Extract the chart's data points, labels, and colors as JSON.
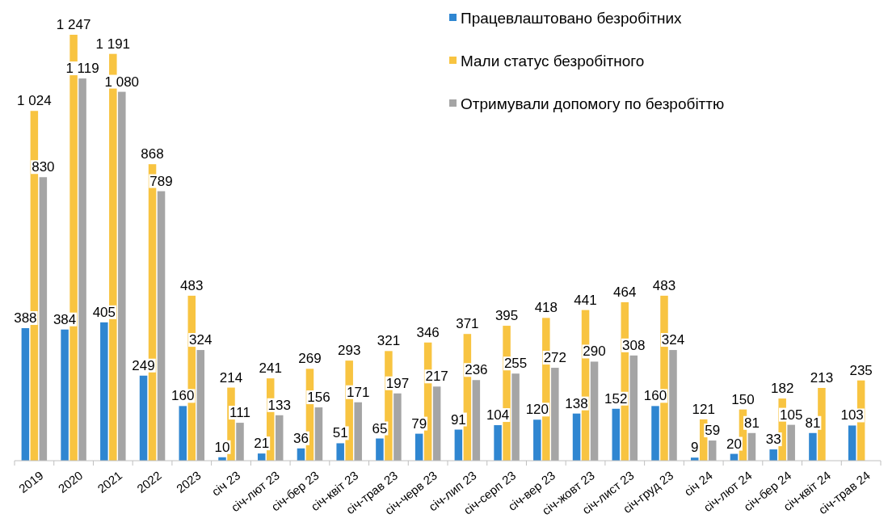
{
  "chart_data": {
    "type": "bar",
    "categories": [
      "2019",
      "2020",
      "2021",
      "2022",
      "2023",
      "січ 23",
      "січ-лют 23",
      "січ-бер 23",
      "січ-квіт 23",
      "січ-трав 23",
      "січ-черв 23",
      "січ-лип 23",
      "січ-серп 23",
      "січ-вер 23",
      "січ-жовт 23",
      "січ-лист 23",
      "січ-груд 23",
      "січ 24",
      "січ-лют 24",
      "січ-бер 24",
      "січ-квіт 24",
      "січ-трав 24"
    ],
    "series": [
      {
        "name": "Працевлаштовано безробітних",
        "color": "#2f86d1",
        "values": [
          388,
          384,
          405,
          249,
          160,
          10,
          21,
          36,
          51,
          65,
          79,
          91,
          104,
          120,
          138,
          152,
          160,
          9,
          20,
          33,
          81,
          103
        ],
        "value_labels": [
          "388",
          "384",
          "405",
          "249",
          "160",
          "10",
          "21",
          "36",
          "51",
          "65",
          "79",
          "91",
          "104",
          "120",
          "138",
          "152",
          "160",
          "9",
          "20",
          "33",
          "81",
          "103"
        ]
      },
      {
        "name": "Мали статус безробітного",
        "color": "#f8c441",
        "values": [
          1024,
          1247,
          1191,
          868,
          483,
          214,
          241,
          269,
          293,
          321,
          346,
          371,
          395,
          418,
          441,
          464,
          483,
          121,
          150,
          182,
          213,
          235
        ],
        "value_labels": [
          "1 024",
          "1 247",
          "1 191",
          "868",
          "483",
          "214",
          "241",
          "269",
          "293",
          "321",
          "346",
          "371",
          "395",
          "418",
          "441",
          "464",
          "483",
          "121",
          "150",
          "182",
          "213",
          "235"
        ]
      },
      {
        "name": "Отримували допомогу по безробіттю",
        "color": "#a5a5a5",
        "values": [
          830,
          1119,
          1080,
          789,
          324,
          111,
          133,
          156,
          171,
          197,
          217,
          236,
          255,
          272,
          290,
          308,
          324,
          59,
          81,
          105,
          null,
          null
        ],
        "value_labels": [
          "830",
          "1 119",
          "1 080",
          "789",
          "324",
          "111",
          "133",
          "156",
          "171",
          "197",
          "217",
          "236",
          "255",
          "272",
          "290",
          "308",
          "324",
          "59",
          "81",
          "105",
          null,
          null
        ]
      }
    ],
    "legend": "top right"
  }
}
